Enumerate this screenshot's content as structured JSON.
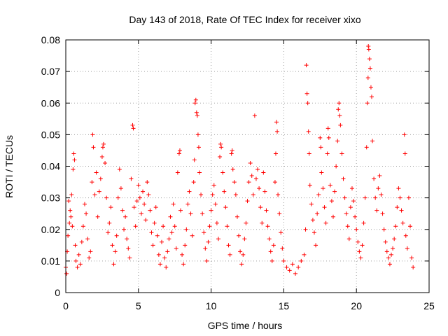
{
  "chart_data": {
    "type": "scatter",
    "title": "Day 143 of 2018, Rate Of TEC Index for receiver xixo",
    "xlabel": "GPS time / hours",
    "ylabel": "ROTI / TECUs",
    "xlim": [
      0,
      25
    ],
    "ylim": [
      0,
      0.08
    ],
    "x_ticks": [
      "0",
      "5",
      "10",
      "15",
      "20",
      "25"
    ],
    "y_ticks": [
      "0",
      "0.01",
      "0.02",
      "0.03",
      "0.04",
      "0.05",
      "0.06",
      "0.07",
      "0.08"
    ],
    "grid": true,
    "marker": "+",
    "series": [
      {
        "name": "ROTI",
        "color": "#ff0000",
        "points": [
          [
            0.0,
            0.008
          ],
          [
            0.05,
            0.006
          ],
          [
            0.1,
            0.013
          ],
          [
            0.15,
            0.018
          ],
          [
            0.2,
            0.029
          ],
          [
            0.25,
            0.022
          ],
          [
            0.3,
            0.026
          ],
          [
            0.35,
            0.024
          ],
          [
            0.4,
            0.031
          ],
          [
            0.45,
            0.021
          ],
          [
            0.5,
            0.039
          ],
          [
            0.55,
            0.044
          ],
          [
            0.6,
            0.042
          ],
          [
            0.65,
            0.015
          ],
          [
            0.7,
            0.01
          ],
          [
            0.8,
            0.008
          ],
          [
            0.9,
            0.012
          ],
          [
            1.0,
            0.009
          ],
          [
            1.1,
            0.016
          ],
          [
            1.2,
            0.021
          ],
          [
            1.3,
            0.028
          ],
          [
            1.4,
            0.025
          ],
          [
            1.5,
            0.017
          ],
          [
            1.6,
            0.011
          ],
          [
            1.7,
            0.013
          ],
          [
            1.8,
            0.035
          ],
          [
            1.85,
            0.05
          ],
          [
            1.9,
            0.046
          ],
          [
            2.0,
            0.031
          ],
          [
            2.1,
            0.038
          ],
          [
            2.2,
            0.024
          ],
          [
            2.3,
            0.032
          ],
          [
            2.4,
            0.036
          ],
          [
            2.5,
            0.043
          ],
          [
            2.55,
            0.046
          ],
          [
            2.6,
            0.047
          ],
          [
            2.7,
            0.041
          ],
          [
            2.8,
            0.03
          ],
          [
            2.9,
            0.019
          ],
          [
            3.0,
            0.022
          ],
          [
            3.1,
            0.027
          ],
          [
            3.2,
            0.015
          ],
          [
            3.3,
            0.009
          ],
          [
            3.4,
            0.013
          ],
          [
            3.5,
            0.018
          ],
          [
            3.6,
            0.03
          ],
          [
            3.7,
            0.039
          ],
          [
            3.8,
            0.033
          ],
          [
            3.9,
            0.026
          ],
          [
            4.0,
            0.02
          ],
          [
            4.1,
            0.024
          ],
          [
            4.2,
            0.017
          ],
          [
            4.3,
            0.014
          ],
          [
            4.4,
            0.011
          ],
          [
            4.5,
            0.036
          ],
          [
            4.6,
            0.053
          ],
          [
            4.65,
            0.052
          ],
          [
            4.7,
            0.027
          ],
          [
            4.8,
            0.021
          ],
          [
            4.9,
            0.029
          ],
          [
            5.0,
            0.034
          ],
          [
            5.1,
            0.03
          ],
          [
            5.2,
            0.025
          ],
          [
            5.3,
            0.032
          ],
          [
            5.4,
            0.028
          ],
          [
            5.5,
            0.023
          ],
          [
            5.6,
            0.035
          ],
          [
            5.7,
            0.031
          ],
          [
            5.8,
            0.026
          ],
          [
            5.9,
            0.019
          ],
          [
            6.0,
            0.015
          ],
          [
            6.1,
            0.022
          ],
          [
            6.2,
            0.027
          ],
          [
            6.3,
            0.018
          ],
          [
            6.4,
            0.012
          ],
          [
            6.5,
            0.009
          ],
          [
            6.6,
            0.016
          ],
          [
            6.7,
            0.021
          ],
          [
            6.8,
            0.011
          ],
          [
            6.9,
            0.008
          ],
          [
            7.0,
            0.013
          ],
          [
            7.1,
            0.017
          ],
          [
            7.2,
            0.024
          ],
          [
            7.3,
            0.019
          ],
          [
            7.4,
            0.028
          ],
          [
            7.5,
            0.021
          ],
          [
            7.6,
            0.014
          ],
          [
            7.7,
            0.038
          ],
          [
            7.8,
            0.044
          ],
          [
            7.85,
            0.045
          ],
          [
            7.9,
            0.026
          ],
          [
            8.0,
            0.012
          ],
          [
            8.1,
            0.009
          ],
          [
            8.2,
            0.015
          ],
          [
            8.3,
            0.02
          ],
          [
            8.4,
            0.028
          ],
          [
            8.5,
            0.032
          ],
          [
            8.6,
            0.025
          ],
          [
            8.7,
            0.018
          ],
          [
            8.8,
            0.035
          ],
          [
            8.85,
            0.042
          ],
          [
            8.9,
            0.06
          ],
          [
            8.95,
            0.061
          ],
          [
            9.0,
            0.057
          ],
          [
            9.05,
            0.056
          ],
          [
            9.1,
            0.05
          ],
          [
            9.15,
            0.046
          ],
          [
            9.2,
            0.038
          ],
          [
            9.3,
            0.031
          ],
          [
            9.4,
            0.025
          ],
          [
            9.5,
            0.019
          ],
          [
            9.6,
            0.014
          ],
          [
            9.7,
            0.01
          ],
          [
            9.8,
            0.016
          ],
          [
            9.9,
            0.021
          ],
          [
            10.0,
            0.026
          ],
          [
            10.1,
            0.031
          ],
          [
            10.2,
            0.034
          ],
          [
            10.3,
            0.028
          ],
          [
            10.4,
            0.022
          ],
          [
            10.5,
            0.017
          ],
          [
            10.6,
            0.043
          ],
          [
            10.65,
            0.047
          ],
          [
            10.7,
            0.046
          ],
          [
            10.8,
            0.038
          ],
          [
            10.9,
            0.032
          ],
          [
            11.0,
            0.027
          ],
          [
            11.1,
            0.021
          ],
          [
            11.2,
            0.015
          ],
          [
            11.3,
            0.012
          ],
          [
            11.4,
            0.044
          ],
          [
            11.45,
            0.045
          ],
          [
            11.5,
            0.039
          ],
          [
            11.6,
            0.035
          ],
          [
            11.7,
            0.031
          ],
          [
            11.8,
            0.024
          ],
          [
            11.9,
            0.018
          ],
          [
            12.0,
            0.013
          ],
          [
            12.1,
            0.009
          ],
          [
            12.2,
            0.012
          ],
          [
            12.3,
            0.017
          ],
          [
            12.4,
            0.022
          ],
          [
            12.5,
            0.029
          ],
          [
            12.6,
            0.035
          ],
          [
            12.7,
            0.041
          ],
          [
            12.8,
            0.037
          ],
          [
            12.9,
            0.031
          ],
          [
            13.0,
            0.056
          ],
          [
            13.1,
            0.036
          ],
          [
            13.2,
            0.039
          ],
          [
            13.3,
            0.033
          ],
          [
            13.4,
            0.027
          ],
          [
            13.5,
            0.022
          ],
          [
            13.6,
            0.038
          ],
          [
            13.7,
            0.032
          ],
          [
            13.8,
            0.026
          ],
          [
            13.9,
            0.021
          ],
          [
            14.0,
            0.017
          ],
          [
            14.1,
            0.013
          ],
          [
            14.2,
            0.01
          ],
          [
            14.3,
            0.015
          ],
          [
            14.4,
            0.035
          ],
          [
            14.45,
            0.044
          ],
          [
            14.5,
            0.054
          ],
          [
            14.55,
            0.051
          ],
          [
            14.6,
            0.031
          ],
          [
            14.7,
            0.025
          ],
          [
            14.8,
            0.019
          ],
          [
            14.9,
            0.014
          ],
          [
            15.0,
            0.01
          ],
          [
            15.2,
            0.008
          ],
          [
            15.4,
            0.007
          ],
          [
            15.6,
            0.009
          ],
          [
            15.8,
            0.006
          ],
          [
            16.0,
            0.008
          ],
          [
            16.2,
            0.01
          ],
          [
            16.4,
            0.012
          ],
          [
            16.5,
            0.02
          ],
          [
            16.55,
            0.072
          ],
          [
            16.6,
            0.063
          ],
          [
            16.65,
            0.06
          ],
          [
            16.7,
            0.051
          ],
          [
            16.75,
            0.044
          ],
          [
            16.8,
            0.034
          ],
          [
            16.9,
            0.028
          ],
          [
            17.0,
            0.023
          ],
          [
            17.1,
            0.019
          ],
          [
            17.2,
            0.015
          ],
          [
            17.3,
            0.025
          ],
          [
            17.4,
            0.031
          ],
          [
            17.5,
            0.049
          ],
          [
            17.55,
            0.046
          ],
          [
            17.6,
            0.038
          ],
          [
            17.7,
            0.033
          ],
          [
            17.8,
            0.027
          ],
          [
            17.9,
            0.022
          ],
          [
            18.0,
            0.044
          ],
          [
            18.05,
            0.052
          ],
          [
            18.1,
            0.049
          ],
          [
            18.2,
            0.034
          ],
          [
            18.3,
            0.029
          ],
          [
            18.4,
            0.024
          ],
          [
            18.5,
            0.032
          ],
          [
            18.6,
            0.04
          ],
          [
            18.7,
            0.048
          ],
          [
            18.75,
            0.058
          ],
          [
            18.8,
            0.06
          ],
          [
            18.85,
            0.056
          ],
          [
            18.9,
            0.053
          ],
          [
            19.0,
            0.044
          ],
          [
            19.1,
            0.036
          ],
          [
            19.2,
            0.03
          ],
          [
            19.3,
            0.025
          ],
          [
            19.4,
            0.021
          ],
          [
            19.5,
            0.017
          ],
          [
            19.6,
            0.027
          ],
          [
            19.7,
            0.033
          ],
          [
            19.8,
            0.029
          ],
          [
            19.9,
            0.024
          ],
          [
            20.0,
            0.02
          ],
          [
            20.1,
            0.016
          ],
          [
            20.2,
            0.013
          ],
          [
            20.3,
            0.011
          ],
          [
            20.4,
            0.015
          ],
          [
            20.5,
            0.022
          ],
          [
            20.6,
            0.03
          ],
          [
            20.7,
            0.046
          ],
          [
            20.75,
            0.06
          ],
          [
            20.8,
            0.068
          ],
          [
            20.82,
            0.078
          ],
          [
            20.85,
            0.077
          ],
          [
            20.9,
            0.074
          ],
          [
            20.95,
            0.071
          ],
          [
            21.0,
            0.065
          ],
          [
            21.05,
            0.062
          ],
          [
            21.1,
            0.048
          ],
          [
            21.2,
            0.036
          ],
          [
            21.3,
            0.03
          ],
          [
            21.4,
            0.026
          ],
          [
            21.5,
            0.033
          ],
          [
            21.6,
            0.037
          ],
          [
            21.7,
            0.031
          ],
          [
            21.8,
            0.025
          ],
          [
            21.9,
            0.02
          ],
          [
            22.0,
            0.016
          ],
          [
            22.1,
            0.013
          ],
          [
            22.2,
            0.011
          ],
          [
            22.3,
            0.009
          ],
          [
            22.4,
            0.012
          ],
          [
            22.5,
            0.014
          ],
          [
            22.6,
            0.017
          ],
          [
            22.7,
            0.021
          ],
          [
            22.8,
            0.027
          ],
          [
            22.9,
            0.033
          ],
          [
            23.0,
            0.03
          ],
          [
            23.1,
            0.026
          ],
          [
            23.2,
            0.022
          ],
          [
            23.3,
            0.05
          ],
          [
            23.35,
            0.044
          ],
          [
            23.4,
            0.018
          ],
          [
            23.5,
            0.014
          ],
          [
            23.6,
            0.03
          ],
          [
            23.7,
            0.021
          ],
          [
            23.8,
            0.011
          ],
          [
            23.9,
            0.008
          ]
        ]
      }
    ]
  }
}
